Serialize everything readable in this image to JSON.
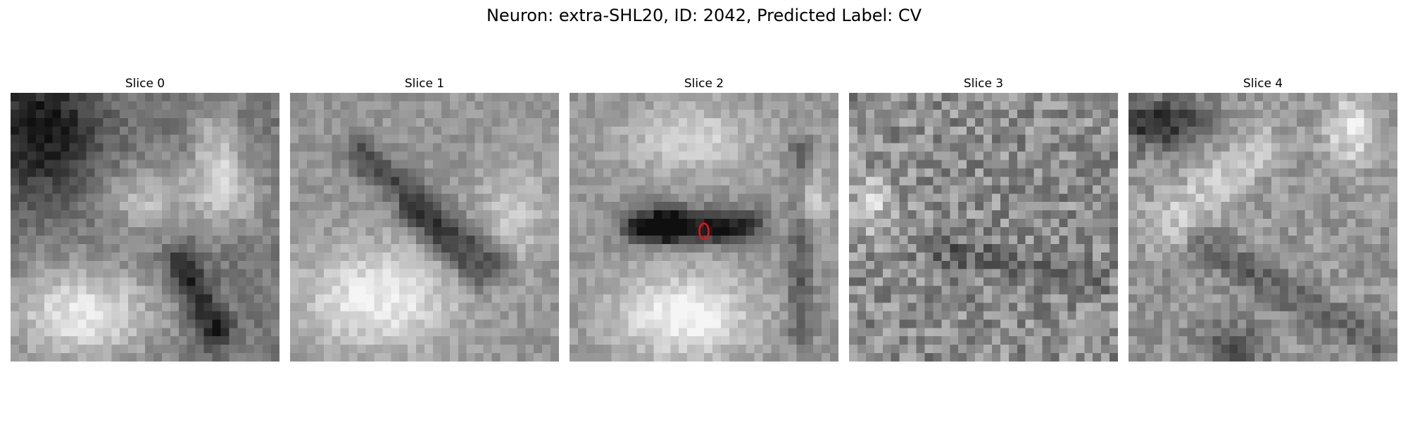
{
  "figure": {
    "title": "Neuron: extra-SHL20, ID: 2042, Predicted Label: CV",
    "panels": [
      {
        "title": "Slice 0",
        "marker": false
      },
      {
        "title": "Slice 1",
        "marker": false
      },
      {
        "title": "Slice 2",
        "marker": true
      },
      {
        "title": "Slice 3",
        "marker": false
      },
      {
        "title": "Slice 4",
        "marker": false
      }
    ],
    "colormap": "gray",
    "marker_color": "#e8111a"
  }
}
